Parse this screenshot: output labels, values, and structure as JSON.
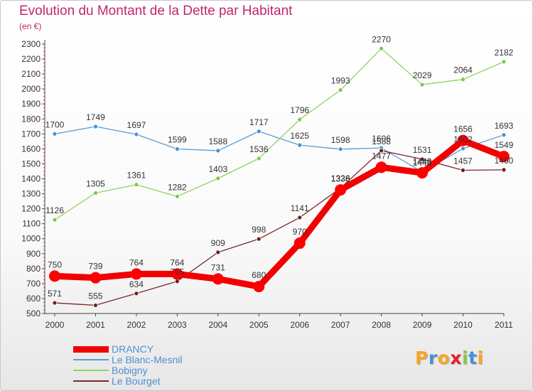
{
  "title": "Evolution du Montant de la Dette par Habitant",
  "subtitle": "(en €)",
  "logo": {
    "text": "Proxiti",
    "colors": [
      "#f5a623",
      "#4a90d9",
      "#f5a623",
      "#e2232b",
      "#8cc63f",
      "#4a90d9",
      "#f5a623"
    ]
  },
  "chart_data": {
    "type": "line",
    "title": "Evolution du Montant de la Dette par Habitant",
    "subtitle": "(en €)",
    "x": [
      "2000",
      "2001",
      "2002",
      "2003",
      "2004",
      "2005",
      "2006",
      "2007",
      "2008",
      "2009",
      "2010",
      "2011"
    ],
    "ylim": [
      500,
      2300
    ],
    "yticks": [
      500,
      600,
      700,
      800,
      900,
      1000,
      1100,
      1200,
      1300,
      1400,
      1500,
      1600,
      1700,
      1800,
      1900,
      2000,
      2100,
      2200,
      2300
    ],
    "grid": false,
    "legend_position": "bottom-left",
    "series": [
      {
        "name": "DRANCY",
        "color": "#f00000",
        "marker": "#ff0000",
        "emphasis": true,
        "values": [
          750,
          739,
          764,
          764,
          731,
          680,
          970,
          1326,
          1477,
          1440,
          1656,
          1549
        ],
        "labels": [
          "750",
          "739",
          "764",
          "764",
          "731",
          "680",
          "970",
          "1326",
          "1477",
          "1440",
          "1656",
          "1549"
        ]
      },
      {
        "name": "Le Blanc-Mesnil",
        "color": "#5b9bd5",
        "marker": "#4b8fcf",
        "values": [
          1700,
          1749,
          1697,
          1599,
          1588,
          1717,
          1625,
          1598,
          1606,
          1446,
          1602,
          1693
        ],
        "labels": [
          "1700",
          "1749",
          "1697",
          "1599",
          "1588",
          "1717",
          "1625",
          "1598",
          "1606",
          "1446",
          "1602",
          "1693"
        ]
      },
      {
        "name": "Bobigny",
        "color": "#8fd35f",
        "marker": "#7cc84a",
        "values": [
          1126,
          1305,
          1361,
          1282,
          1403,
          1536,
          1796,
          1993,
          2270,
          2029,
          2064,
          2182
        ],
        "labels": [
          "1126",
          "1305",
          "1361",
          "1282",
          "1403",
          "1536",
          "1796",
          "1993",
          "2270",
          "2029",
          "2064",
          "2182"
        ]
      },
      {
        "name": "Le Bourget",
        "color": "#7a2a2a",
        "marker": "#6b1f1f",
        "values": [
          571,
          555,
          634,
          715,
          909,
          998,
          1141,
          1338,
          1588,
          1531,
          1457,
          1460
        ],
        "labels": [
          "571",
          "555",
          "634",
          "715",
          "909",
          "998",
          "1141",
          "1338",
          "1588",
          "1531",
          "1457",
          "1460"
        ]
      }
    ]
  }
}
